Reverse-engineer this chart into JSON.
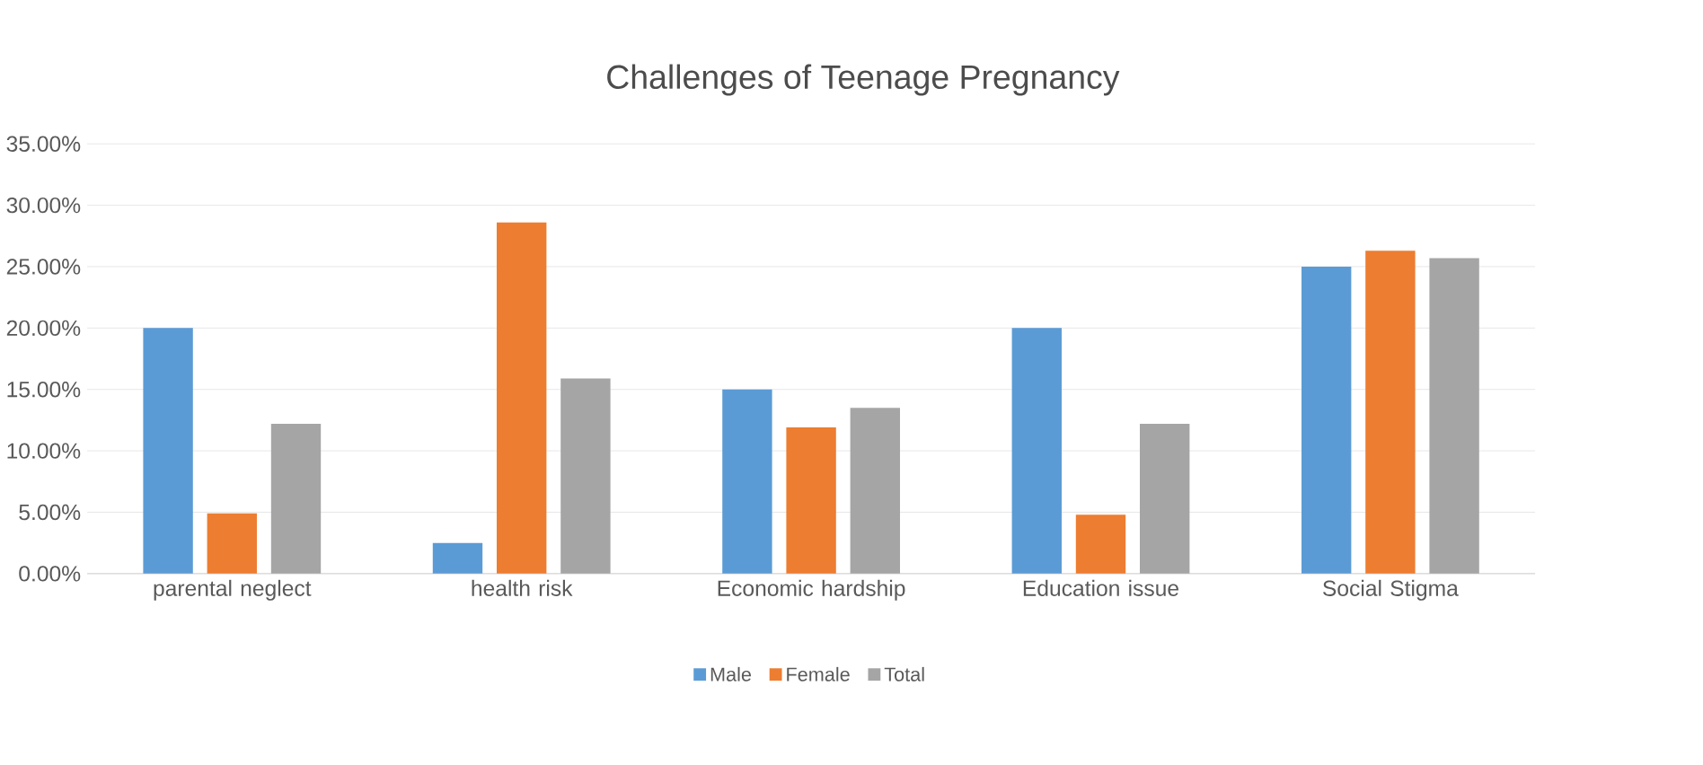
{
  "chart_data": {
    "type": "bar",
    "title": "Challenges of Teenage Pregnancy",
    "categories": [
      "parental neglect",
      "health risk",
      "Economic hardship",
      "Education issue",
      "Social Stigma"
    ],
    "series": [
      {
        "name": "Male",
        "color": "#5b9bd5",
        "values": [
          20,
          2.5,
          15,
          20,
          25
        ]
      },
      {
        "name": "Female",
        "color": "#ed7d31",
        "values": [
          4.9,
          28.6,
          11.9,
          4.8,
          26.3
        ]
      },
      {
        "name": "Total",
        "color": "#a5a5a5",
        "values": [
          12.2,
          15.9,
          13.5,
          12.2,
          25.7
        ]
      }
    ],
    "ylim": [
      0,
      35
    ],
    "yticks": [
      {
        "value": 0,
        "label": "0.00%"
      },
      {
        "value": 5,
        "label": "5.00%"
      },
      {
        "value": 10,
        "label": "10.00%"
      },
      {
        "value": 15,
        "label": "15.00%"
      },
      {
        "value": 20,
        "label": "20.00%"
      },
      {
        "value": 25,
        "label": "25.00%"
      },
      {
        "value": 30,
        "label": "30.00%"
      },
      {
        "value": 35,
        "label": "35.00%"
      }
    ],
    "grid": "y",
    "legend": "bottom"
  }
}
